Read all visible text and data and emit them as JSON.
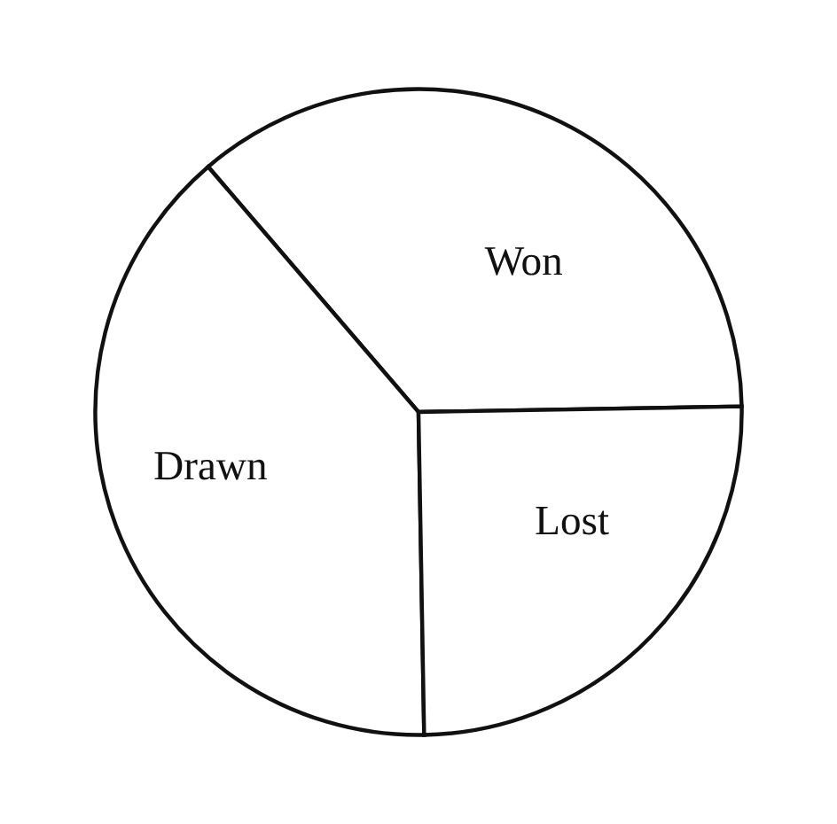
{
  "chart_data": {
    "type": "pie",
    "categories": [
      "Won",
      "Drawn",
      "Lost"
    ],
    "values": [
      36,
      39,
      25
    ],
    "colors": [
      "#ffffff",
      "#ffffff",
      "#ffffff"
    ]
  }
}
